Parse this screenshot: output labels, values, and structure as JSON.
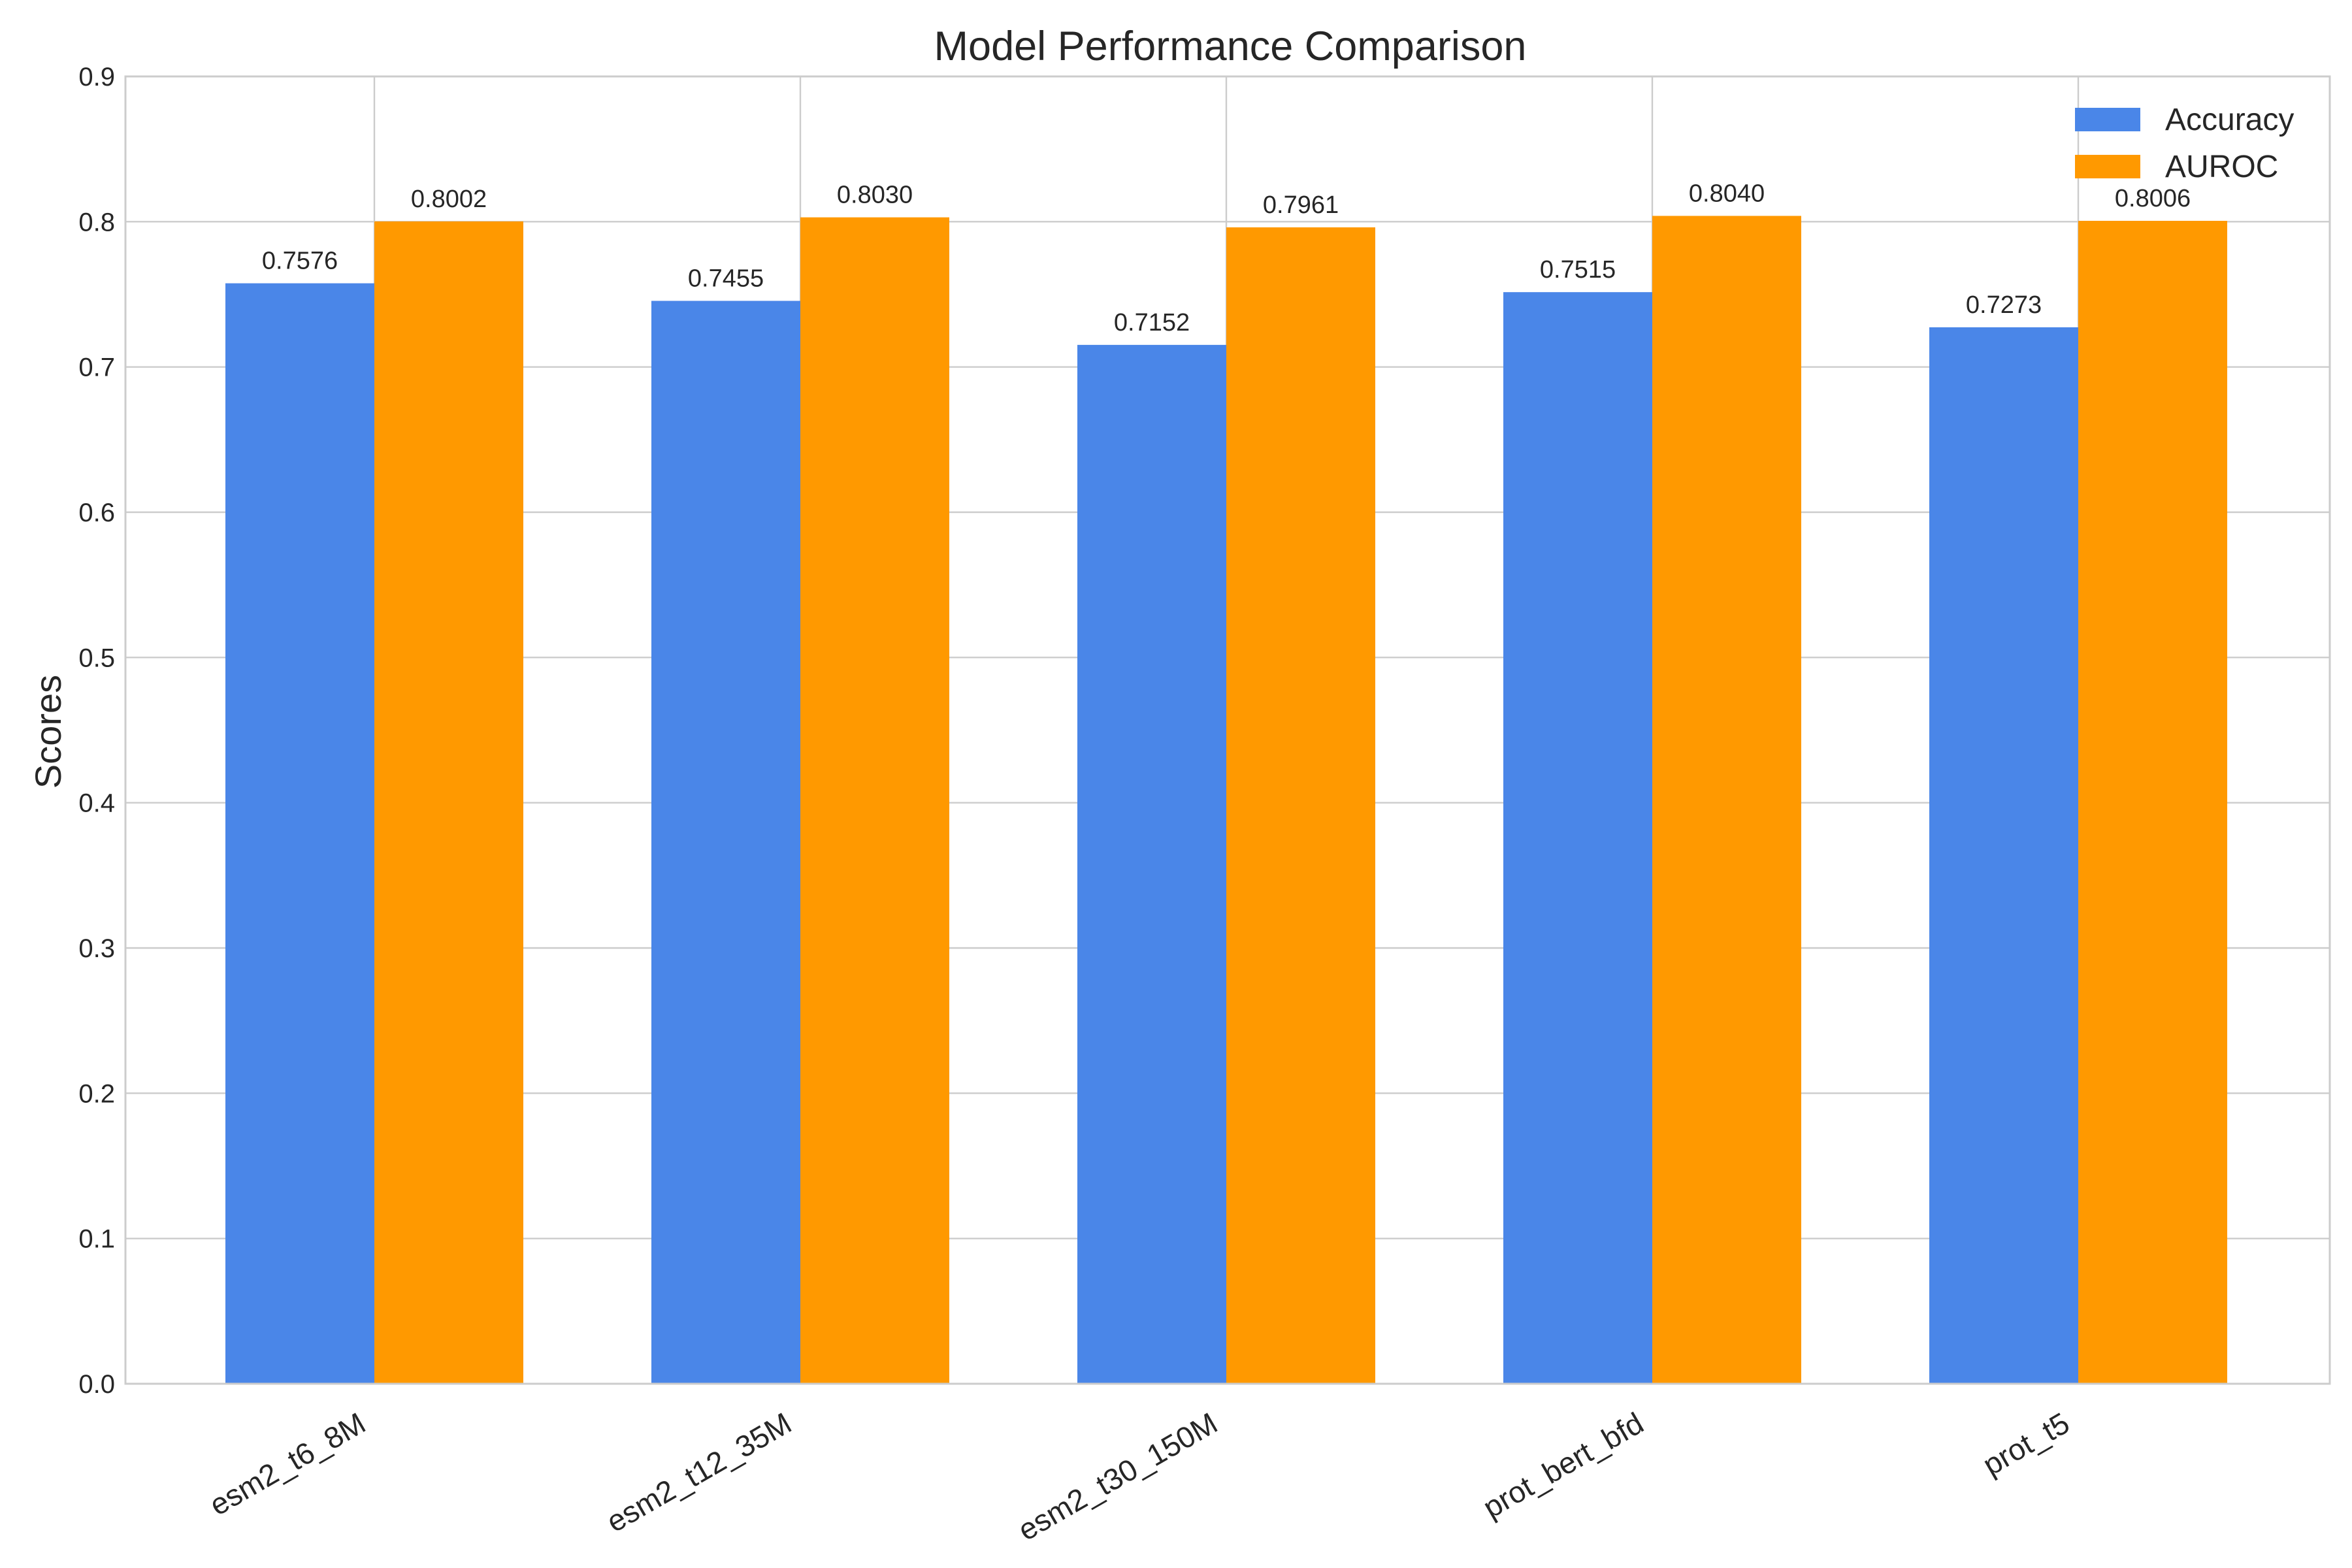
{
  "chart_data": {
    "type": "bar",
    "title": "Model Performance Comparison",
    "xlabel": "",
    "ylabel": "Scores",
    "ylim": [
      0,
      0.9
    ],
    "yticks": [
      "0.0",
      "0.1",
      "0.2",
      "0.3",
      "0.4",
      "0.5",
      "0.6",
      "0.7",
      "0.8",
      "0.9"
    ],
    "categories": [
      "esm2_t6_8M",
      "esm2_t12_35M",
      "esm2_t30_150M",
      "prot_bert_bfd",
      "prot_t5"
    ],
    "series": [
      {
        "name": "Accuracy",
        "color": "#4a86e8",
        "values": [
          0.7576,
          0.7455,
          0.7152,
          0.7515,
          0.7273
        ],
        "labels": [
          "0.7576",
          "0.7455",
          "0.7152",
          "0.7515",
          "0.7273"
        ]
      },
      {
        "name": "AUROC",
        "color": "#ff9900",
        "values": [
          0.8002,
          0.803,
          0.7961,
          0.804,
          0.8006
        ],
        "labels": [
          "0.8002",
          "0.8030",
          "0.7961",
          "0.8040",
          "0.8006"
        ]
      }
    ],
    "grid": true,
    "legend_position": "top-right"
  }
}
